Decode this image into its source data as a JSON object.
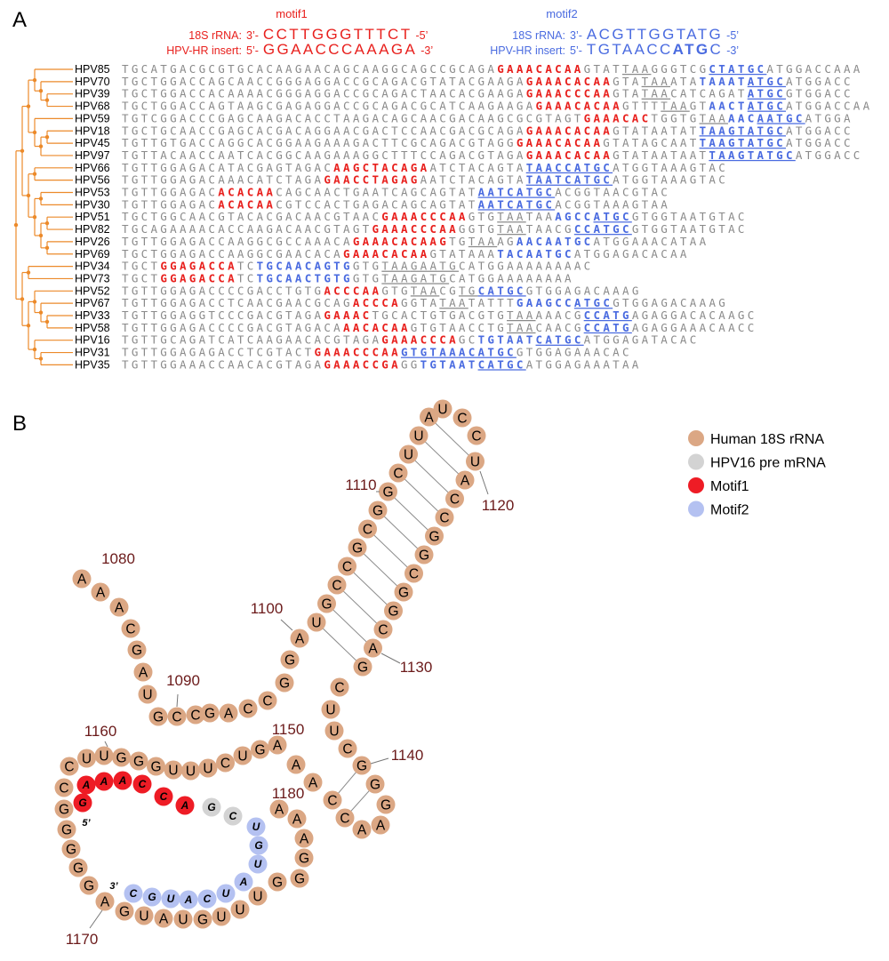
{
  "panel_a": {
    "label": "A",
    "motif1": {
      "title": "motif1",
      "color": "#e8201d",
      "rows": [
        {
          "label": "18S rRNA:",
          "end5": "3’-",
          "seq": [
            {
              "text": "CCTTGGGTTTCT",
              "bold": false
            }
          ],
          "end3": "-5’"
        },
        {
          "label": "HPV-HR insert:",
          "end5": "5’-",
          "seq": [
            {
              "text": "GGAACCCAAAGA",
              "bold": false
            }
          ],
          "end3": "-3’"
        }
      ]
    },
    "motif2": {
      "title": "motif2",
      "color": "#4a6be0",
      "rows": [
        {
          "label": "18S rRNA:",
          "end5": "3’-",
          "seq": [
            {
              "text": "ACGTTGGTATG",
              "bold": false
            }
          ],
          "end3": "-5’"
        },
        {
          "label": "HPV-HR insert:",
          "end5": "5’-",
          "seq": [
            {
              "text": "TGTAACC",
              "bold": false
            },
            {
              "text": "ATG",
              "bold": true
            },
            {
              "text": "C",
              "bold": false
            }
          ],
          "end3": "-3’"
        }
      ]
    },
    "alignment": {
      "rows": [
        {
          "name": "HPV85",
          "segments": [
            [
              "TGCATGACGCGTGCACAAGAACAGCAAGGCAGCCGCAGA",
              "g"
            ],
            [
              "GAAACACAA",
              "r"
            ],
            [
              "GTAT",
              "g"
            ],
            [
              "TAA",
              "u"
            ],
            [
              "GGGTCG",
              "g"
            ],
            [
              "CTATGC",
              "bu"
            ],
            [
              "ATGGACCAAA",
              "g"
            ]
          ]
        },
        {
          "name": "HPV70",
          "segments": [
            [
              "TGCTGGACCAGCAACCGGGAGGACCGCAGACGTATACGAAGA",
              "g"
            ],
            [
              "GAAACACAA",
              "r"
            ],
            [
              "GTA",
              "g"
            ],
            [
              "TAA",
              "u"
            ],
            [
              "ATA",
              "g"
            ],
            [
              "TAAAT",
              "b"
            ],
            [
              "ATGC",
              "bu"
            ],
            [
              "ATGGACC",
              "g"
            ]
          ]
        },
        {
          "name": "HPV39",
          "segments": [
            [
              "TGCTGGACCACAAAACGGGAGGACCGCAGACTAACACGAAGA",
              "g"
            ],
            [
              "GAAACCCAA",
              "r"
            ],
            [
              "GTA",
              "g"
            ],
            [
              "TAA",
              "u"
            ],
            [
              "CATCAGAT",
              "g"
            ],
            [
              "ATGC",
              "bu"
            ],
            [
              "GTGGACC",
              "g"
            ]
          ]
        },
        {
          "name": "HPV68",
          "segments": [
            [
              "TGCTGGACCAGTAAGCGAGAGGACCGCAGACGCATCAAGAAGA",
              "g"
            ],
            [
              "GAAACACAA",
              "r"
            ],
            [
              "GTTT",
              "g"
            ],
            [
              "TAA",
              "u"
            ],
            [
              "GT",
              "g"
            ],
            [
              "AACT",
              "b"
            ],
            [
              "ATGC",
              "bu"
            ],
            [
              "ATGGACCAA",
              "g"
            ]
          ]
        },
        {
          "name": "HPV59",
          "segments": [
            [
              "TGTCGGACCCGAGCAAGACACCTAAGACAGCAACGACAAGCGCGTAGT",
              "g"
            ],
            [
              "GAAACAC",
              "r"
            ],
            [
              "TGGTG",
              "g"
            ],
            [
              "TAA",
              "u"
            ],
            [
              "AAC",
              "b"
            ],
            [
              "AATGC",
              "bu"
            ],
            [
              "ATGGA",
              "g"
            ]
          ]
        },
        {
          "name": "HPV18",
          "segments": [
            [
              "TGCTGCAACCGAGCACGACAGGAACGACTCCAACGACGCAGA",
              "g"
            ],
            [
              "GAAACACAA",
              "r"
            ],
            [
              "GTATAATAT",
              "g"
            ],
            [
              "TAAGTATGC",
              "bu"
            ],
            [
              "ATGGACC",
              "g"
            ]
          ]
        },
        {
          "name": "HPV45",
          "segments": [
            [
              "TGTTGTGACCAGGCACGGAAGAAAGACTTCGCAGACGTAGG",
              "g"
            ],
            [
              "GAAACACAA",
              "r"
            ],
            [
              "GTATAGCAAT",
              "g"
            ],
            [
              "TAAGTATGC",
              "bu"
            ],
            [
              "ATGGACC",
              "g"
            ]
          ]
        },
        {
          "name": "HPV97",
          "segments": [
            [
              "TGTTACAACCAATCACGGCAAGAAAGGCTTTCCAGACGTAGA",
              "g"
            ],
            [
              "GAAACACAA",
              "r"
            ],
            [
              "GTATAATAAT",
              "g"
            ],
            [
              "TAAGTATGC",
              "bu"
            ],
            [
              "ATGGACC",
              "g"
            ]
          ]
        },
        {
          "name": "HPV66",
          "segments": [
            [
              "TGTTGGAGACATACGAGTAGAC",
              "g"
            ],
            [
              "AAGCTACAGA",
              "r"
            ],
            [
              "ATCTACAGTA",
              "g"
            ],
            [
              "TAACCATGC",
              "bu"
            ],
            [
              "ATGGTAAAGTAC",
              "g"
            ]
          ]
        },
        {
          "name": "HPV56",
          "segments": [
            [
              "TGTTGGAGACAAACATCTAGA",
              "g"
            ],
            [
              "GAACCTAGAG",
              "r"
            ],
            [
              "AATCTACAGTA",
              "g"
            ],
            [
              "TAATCATGC",
              "bu"
            ],
            [
              "ATGGTAAAGTAC",
              "g"
            ]
          ]
        },
        {
          "name": "HPV53",
          "segments": [
            [
              "TGTTGGAGAC",
              "g"
            ],
            [
              "ACACAA",
              "r"
            ],
            [
              "CAGCAACTGAATCAGCAGTAT",
              "g"
            ],
            [
              "AATCATGC",
              "bu"
            ],
            [
              "ACGGTAACGTAC",
              "g"
            ]
          ]
        },
        {
          "name": "HPV30",
          "segments": [
            [
              "TGTTGGAGAC",
              "g"
            ],
            [
              "ACACAA",
              "r"
            ],
            [
              "CGTCCACTGAGACAGCAGTAT",
              "g"
            ],
            [
              "AATCATGC",
              "bu"
            ],
            [
              "ACGGTAAAGTAA",
              "g"
            ]
          ]
        },
        {
          "name": "HPV51",
          "segments": [
            [
              "TGCTGGCAACGTACACGACAACGTAAC",
              "g"
            ],
            [
              "GAAACCCAA",
              "r"
            ],
            [
              "GTG",
              "g"
            ],
            [
              "TAA",
              "u"
            ],
            [
              "TAA",
              "g"
            ],
            [
              "AGCC",
              "b"
            ],
            [
              "ATGC",
              "bu"
            ],
            [
              "GTGGTAATGTAC",
              "g"
            ]
          ]
        },
        {
          "name": "HPV82",
          "segments": [
            [
              "TGCAGAAAACACCAAGACAACGTAGT",
              "g"
            ],
            [
              "GAAACCCAA",
              "r"
            ],
            [
              "GGTG",
              "g"
            ],
            [
              "TAA",
              "u"
            ],
            [
              "TAACG",
              "g"
            ],
            [
              "CCATGC",
              "bu"
            ],
            [
              "GTGGTAATGTAC",
              "g"
            ]
          ]
        },
        {
          "name": "HPV26",
          "segments": [
            [
              "TGTTGGAGACCAAGGCGCCAAACA",
              "g"
            ],
            [
              "GAAACACAAG",
              "r"
            ],
            [
              "TG",
              "g"
            ],
            [
              "TAA",
              "u"
            ],
            [
              "AG",
              "g"
            ],
            [
              "AACAATGC",
              "b"
            ],
            [
              "ATGGAAACATAA",
              "g"
            ]
          ]
        },
        {
          "name": "HPV69",
          "segments": [
            [
              "TGCTGGAGACCAAGGCGAACACA",
              "g"
            ],
            [
              "GAAACACAA",
              "r"
            ],
            [
              "GTATAAA",
              "g"
            ],
            [
              "TACAATGC",
              "b"
            ],
            [
              "ATGGAGACACAA",
              "g"
            ]
          ]
        },
        {
          "name": "HPV34",
          "segments": [
            [
              "TGCT",
              "g"
            ],
            [
              "GGAGACCA",
              "r"
            ],
            [
              "TC",
              "g"
            ],
            [
              "TGCAACAGTG",
              "b"
            ],
            [
              "GTG",
              "g"
            ],
            [
              "TAA",
              "u"
            ],
            [
              "GAATG",
              "u"
            ],
            [
              "CATGGAAAAAAAAC",
              "g"
            ]
          ]
        },
        {
          "name": "HPV73",
          "segments": [
            [
              "TGCT",
              "g"
            ],
            [
              "GGAGACCA",
              "r"
            ],
            [
              "TC",
              "g"
            ],
            [
              "TGCAACTGTG",
              "b"
            ],
            [
              "GTG",
              "g"
            ],
            [
              "TAA",
              "u"
            ],
            [
              "GATG",
              "u"
            ],
            [
              "CATGGAAAAAAAA",
              "g"
            ]
          ]
        },
        {
          "name": "HPV52",
          "segments": [
            [
              "TGTTGGAGACCCCGACCTGTG",
              "g"
            ],
            [
              "ACCCAA",
              "r"
            ],
            [
              "GTG",
              "g"
            ],
            [
              "TAA",
              "u"
            ],
            [
              "CG",
              "g"
            ],
            [
              "TG",
              "u"
            ],
            [
              "CATGC",
              "bu"
            ],
            [
              "GTGGAGACAAAG",
              "g"
            ]
          ]
        },
        {
          "name": "HPV67",
          "segments": [
            [
              "TGTTGGAGACCTCAACGAACGCAG",
              "g"
            ],
            [
              "ACCCA",
              "r"
            ],
            [
              "GGTA",
              "g"
            ],
            [
              "TAA",
              "u"
            ],
            [
              "TATTT",
              "g"
            ],
            [
              "GAAGCC",
              "b"
            ],
            [
              "ATGC",
              "bu"
            ],
            [
              "GTGGAGACAAAG",
              "g"
            ]
          ]
        },
        {
          "name": "HPV33",
          "segments": [
            [
              "TGTTGGAGGTCCCGACGTAGA",
              "g"
            ],
            [
              "GAAAC",
              "r"
            ],
            [
              "TGCACTGTGACGTG",
              "g"
            ],
            [
              "TAA",
              "u"
            ],
            [
              "AAACG",
              "g"
            ],
            [
              "CCATG",
              "bu"
            ],
            [
              "AGAGGACACAAGC",
              "g"
            ]
          ]
        },
        {
          "name": "HPV58",
          "segments": [
            [
              "TGTTGGAGACCCCGACGTAGACA",
              "g"
            ],
            [
              "AACACAA",
              "r"
            ],
            [
              "GTGTAACCTG",
              "g"
            ],
            [
              "TAA",
              "u"
            ],
            [
              "CAACG",
              "g"
            ],
            [
              "CCATG",
              "bu"
            ],
            [
              "AGAGGAAACAACC",
              "g"
            ]
          ]
        },
        {
          "name": "HPV16",
          "segments": [
            [
              "TGTTGCAGATCATCAAGAACACGTAGA",
              "g"
            ],
            [
              "GAAACCCA",
              "r"
            ],
            [
              "GC",
              "g"
            ],
            [
              "TGTAAT",
              "b"
            ],
            [
              "CATGC",
              "bu"
            ],
            [
              "ATGGAGATACAC",
              "g"
            ]
          ]
        },
        {
          "name": "HPV31",
          "segments": [
            [
              "TGTTGGAGAGACCTCGTACT",
              "g"
            ],
            [
              "GAAACCCAA",
              "r"
            ],
            [
              "GTGTAAACATGC",
              "bu"
            ],
            [
              "GTGGAGAAACAC",
              "g"
            ]
          ]
        },
        {
          "name": "HPV35",
          "segments": [
            [
              "TGTTGGAAACCAACACGTAGA",
              "g"
            ],
            [
              "GAAACCGA",
              "r"
            ],
            [
              "GG",
              "g"
            ],
            [
              "TGTAAT",
              "b"
            ],
            [
              "CATGC",
              "bu"
            ],
            [
              "ATGGAGAAATAA",
              "g"
            ]
          ]
        }
      ]
    }
  },
  "panel_b": {
    "label": "B",
    "legend": [
      {
        "label": "Human 18S rRNA",
        "color": "#dba784"
      },
      {
        "label": "HPV16 pre mRNA",
        "color": "#d3d3d3"
      },
      {
        "label": "Motif1",
        "color": "#ee1c25"
      },
      {
        "label": "Motif2",
        "color": "#b4c1f1"
      }
    ],
    "rrna_bases": [
      "A",
      "A",
      "A",
      "C",
      "G",
      "A",
      "U",
      "G",
      "C",
      "C",
      "G",
      "A",
      "C",
      "C",
      "G",
      "G",
      "A",
      "U",
      "G",
      "C",
      "C",
      "G",
      "C",
      "G",
      "G",
      "C",
      "U",
      "U",
      "A",
      "U",
      "C",
      "C",
      "U",
      "A",
      "C",
      "C",
      "G",
      "G",
      "C",
      "G",
      "G",
      "C",
      "A",
      "G",
      "C",
      "U",
      "U",
      "C",
      "G",
      "G",
      "G",
      "A",
      "A",
      "C",
      "C",
      "A",
      "A",
      "A",
      "G",
      "U",
      "C",
      "U",
      "U",
      "U",
      "G",
      "G",
      "G",
      "U",
      "U",
      "C",
      "C",
      "G",
      "G",
      "G",
      "G",
      "G",
      "A",
      "G",
      "U",
      "A",
      "U",
      "G",
      "U",
      "U",
      "U",
      "G",
      "G",
      "G",
      "A",
      "A",
      "A"
    ],
    "motif1_bases": [
      "G",
      "A",
      "A",
      "A",
      "C",
      "C",
      "A"
    ],
    "pre_mrna_bases": [
      "G",
      "C"
    ],
    "motif2_bases": [
      "U",
      "G",
      "U",
      "A",
      "U",
      "C",
      "A",
      "U",
      "G",
      "C"
    ],
    "end5": "5’",
    "end3": "3’",
    "positions": [
      1080,
      1090,
      1100,
      1110,
      1120,
      1130,
      1140,
      1150,
      1160,
      1170,
      1180
    ]
  }
}
